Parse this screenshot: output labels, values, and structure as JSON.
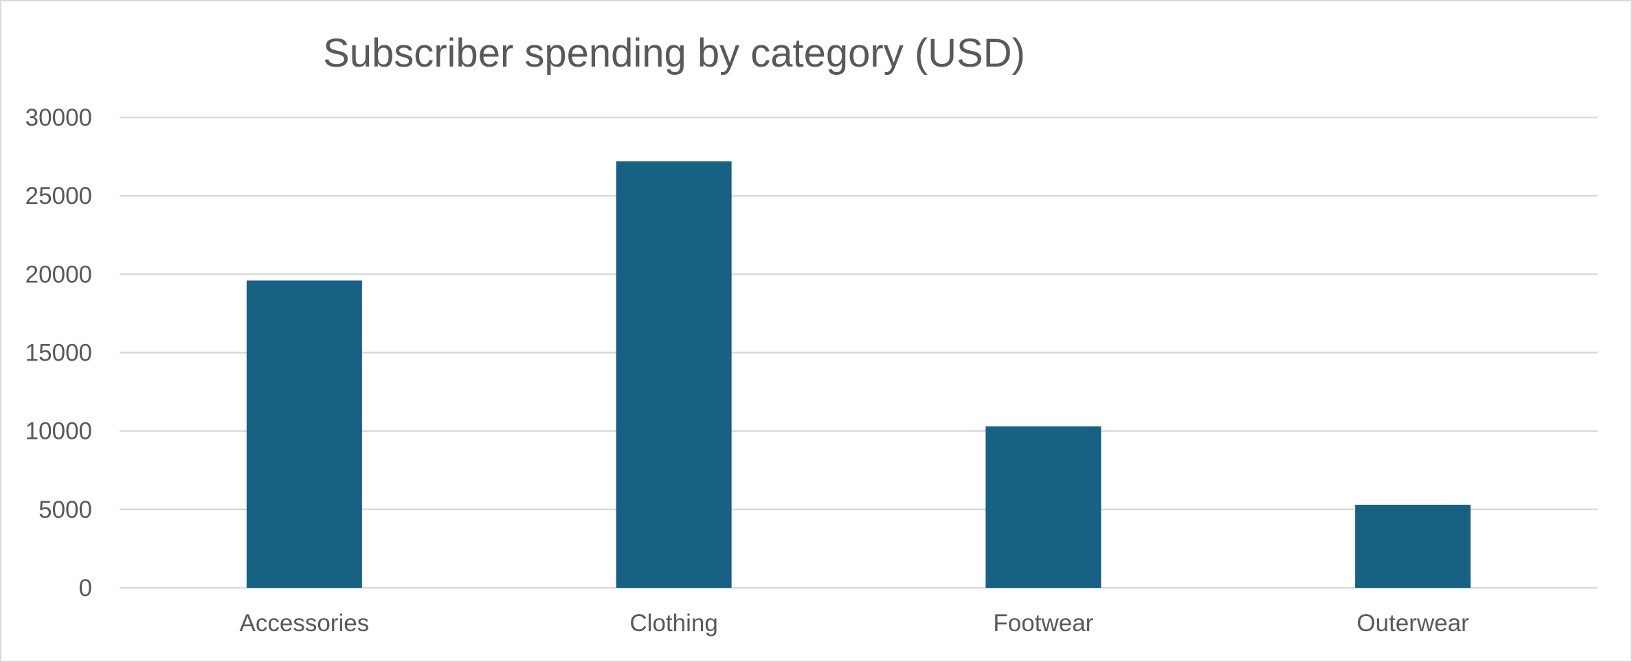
{
  "chart_data": {
    "type": "bar",
    "title": "Subscriber spending by category (USD)",
    "xlabel": "",
    "ylabel": "",
    "categories": [
      "Accessories",
      "Clothing",
      "Footwear",
      "Outerwear"
    ],
    "values": [
      19600,
      27200,
      10300,
      5300
    ],
    "ylim": [
      0,
      30000
    ],
    "yticks": [
      0,
      5000,
      10000,
      15000,
      20000,
      25000,
      30000
    ],
    "grid": true,
    "legend": "none",
    "colors": {
      "bar": "#176185",
      "grid": "#d9d9d9",
      "text": "#595959"
    }
  }
}
